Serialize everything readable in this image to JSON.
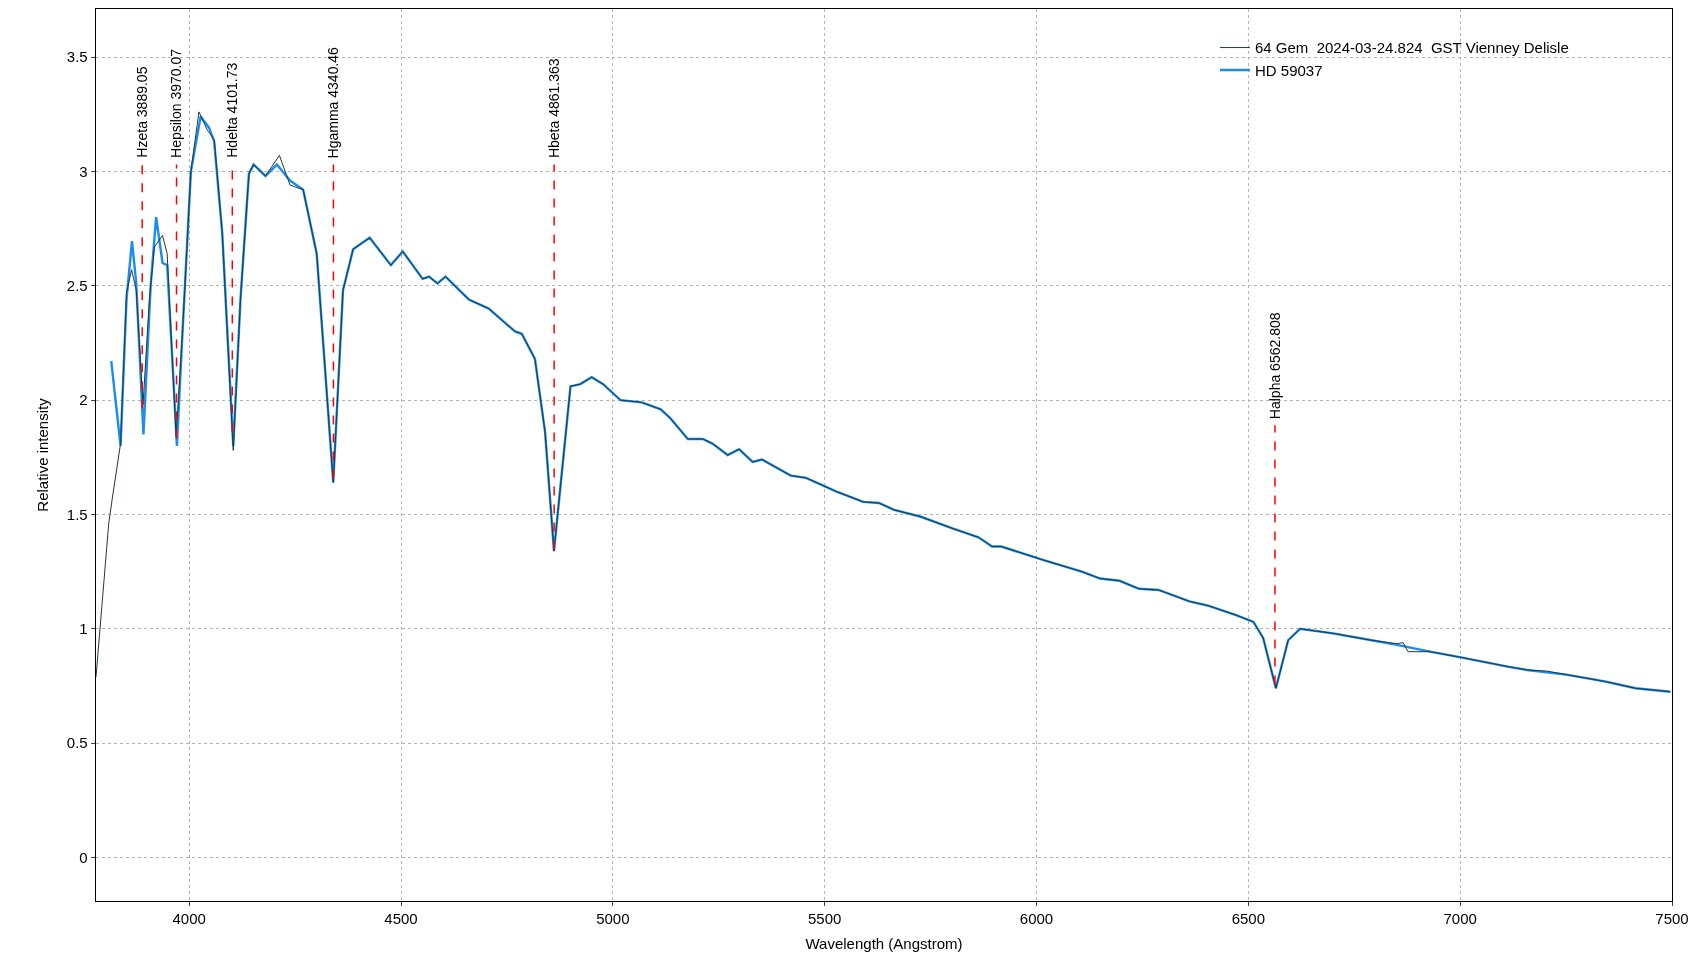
{
  "chart_data": {
    "type": "line",
    "xlabel": "Wavelength (Angstrom)",
    "ylabel": "Relative intensity",
    "xlim": [
      3780,
      7500
    ],
    "xticks": [
      4000,
      4500,
      5000,
      5500,
      6000,
      6500,
      7000,
      7500
    ],
    "ylim": [
      -0.19,
      3.71
    ],
    "yticks": [
      0,
      0.5,
      1,
      1.5,
      2,
      2.5,
      3,
      3.5
    ],
    "grid": true,
    "legend": "top right",
    "series": [
      {
        "name": "64 Gem  2024-03-24.824  GST Vienney Delisle",
        "color": "#1f3b3b",
        "x": [
          3780,
          3810,
          3820,
          3838,
          3852,
          3864,
          3875,
          3891,
          3906,
          3918,
          3937,
          3948,
          3969,
          3984,
          4004,
          4023,
          4043,
          4059,
          4078,
          4104,
          4121,
          4141,
          4152,
          4180,
          4213,
          4238,
          4269,
          4301,
          4340,
          4363,
          4387,
          4426,
          4476,
          4504,
          4551,
          4566,
          4586,
          4605,
          4660,
          4707,
          4769,
          4785,
          4816,
          4840,
          4861,
          4900,
          4923,
          4950,
          4977,
          5018,
          5068,
          5113,
          5136,
          5177,
          5212,
          5235,
          5271,
          5298,
          5330,
          5352,
          5420,
          5456,
          5528,
          5591,
          5628,
          5664,
          5727,
          5800,
          5863,
          5895,
          5917,
          6017,
          6107,
          6150,
          6196,
          6242,
          6288,
          6361,
          6407,
          6471,
          6512,
          6535,
          6565,
          6594,
          6622,
          6700,
          6791,
          6851,
          6865,
          6877,
          6929,
          7002,
          7112,
          7158,
          7205,
          7250,
          7341,
          7414,
          7496
        ],
        "values": [
          0.79,
          1.46,
          1.59,
          1.81,
          2.47,
          2.57,
          2.48,
          1.98,
          2.44,
          2.67,
          2.72,
          2.64,
          1.84,
          2.29,
          3.0,
          3.26,
          3.18,
          3.14,
          2.73,
          1.78,
          2.44,
          2.99,
          3.03,
          2.98,
          3.07,
          2.94,
          2.92,
          2.64,
          1.64,
          2.48,
          2.66,
          2.71,
          2.59,
          2.65,
          2.53,
          2.54,
          2.51,
          2.54,
          2.44,
          2.4,
          2.3,
          2.29,
          2.18,
          1.86,
          1.34,
          2.06,
          2.07,
          2.1,
          2.07,
          2.0,
          1.99,
          1.96,
          1.92,
          1.83,
          1.83,
          1.81,
          1.76,
          1.785,
          1.73,
          1.74,
          1.67,
          1.66,
          1.6,
          1.555,
          1.55,
          1.52,
          1.49,
          1.44,
          1.4,
          1.36,
          1.36,
          1.3,
          1.25,
          1.22,
          1.21,
          1.175,
          1.17,
          1.12,
          1.1,
          1.06,
          1.03,
          0.96,
          0.74,
          0.95,
          1.0,
          0.98,
          0.95,
          0.935,
          0.94,
          0.9,
          0.9,
          0.875,
          0.835,
          0.82,
          0.815,
          0.8,
          0.77,
          0.74,
          0.725
        ]
      },
      {
        "name": "HD 59037",
        "color": "#1a8cf0",
        "x": [
          3816,
          3838,
          3852,
          3865,
          3875,
          3892,
          3909,
          3922,
          3937,
          3948,
          3961,
          3971,
          3984,
          4004,
          4027,
          4047,
          4059,
          4078,
          4104,
          4121,
          4141,
          4152,
          4180,
          4207,
          4238,
          4269,
          4301,
          4340,
          4363,
          4387,
          4426,
          4476,
          4504,
          4551,
          4566,
          4586,
          4605,
          4660,
          4707,
          4769,
          4785,
          4816,
          4840,
          4861,
          4900,
          4923,
          4950,
          4977,
          5018,
          5068,
          5113,
          5136,
          5177,
          5212,
          5235,
          5271,
          5298,
          5330,
          5352,
          5420,
          5456,
          5528,
          5591,
          5628,
          5664,
          5727,
          5800,
          5863,
          5895,
          5917,
          6017,
          6107,
          6150,
          6196,
          6242,
          6288,
          6361,
          6407,
          6471,
          6512,
          6535,
          6565,
          6594,
          6622,
          6700,
          6791,
          6851,
          6929,
          7002,
          7112,
          7158,
          7250,
          7341,
          7414,
          7496
        ],
        "values": [
          2.17,
          1.8,
          2.44,
          2.695,
          2.51,
          1.85,
          2.5,
          2.8,
          2.6,
          2.59,
          2.15,
          1.8,
          2.29,
          3.0,
          3.24,
          3.19,
          3.13,
          2.73,
          1.8,
          2.44,
          2.99,
          3.03,
          2.98,
          3.03,
          2.96,
          2.92,
          2.64,
          1.64,
          2.48,
          2.66,
          2.71,
          2.59,
          2.65,
          2.53,
          2.54,
          2.51,
          2.54,
          2.44,
          2.4,
          2.3,
          2.29,
          2.18,
          1.86,
          1.34,
          2.06,
          2.07,
          2.1,
          2.07,
          2.0,
          1.99,
          1.96,
          1.92,
          1.83,
          1.83,
          1.81,
          1.76,
          1.785,
          1.73,
          1.74,
          1.67,
          1.66,
          1.6,
          1.555,
          1.55,
          1.52,
          1.49,
          1.44,
          1.4,
          1.36,
          1.36,
          1.3,
          1.25,
          1.22,
          1.21,
          1.175,
          1.17,
          1.12,
          1.1,
          1.06,
          1.03,
          0.96,
          0.74,
          0.95,
          1.0,
          0.98,
          0.95,
          0.93,
          0.9,
          0.875,
          0.835,
          0.82,
          0.8,
          0.77,
          0.74,
          0.725
        ]
      }
    ],
    "ref_lines": [
      {
        "axis": "x",
        "value": 3889.05,
        "label": "Hzeta 3889.05",
        "color": "#ff0000",
        "line_style": "dashed"
      },
      {
        "axis": "x",
        "value": 3970.07,
        "label": "Hepsilon 3970.07",
        "color": "#ff0000",
        "line_style": "dashed"
      },
      {
        "axis": "x",
        "value": 4101.73,
        "label": "Hdelta 4101.73",
        "color": "#ff0000",
        "line_style": "dashed"
      },
      {
        "axis": "x",
        "value": 4340.46,
        "label": "Hgamma 4340.46",
        "color": "#ff0000",
        "line_style": "dashed"
      },
      {
        "axis": "x",
        "value": 4861.363,
        "label": "Hbeta 4861.363",
        "color": "#ff0000",
        "line_style": "dashed"
      },
      {
        "axis": "x",
        "value": 6562.808,
        "label": "Halpha 6562.808",
        "color": "#ff0000",
        "line_style": "dashed"
      }
    ]
  }
}
